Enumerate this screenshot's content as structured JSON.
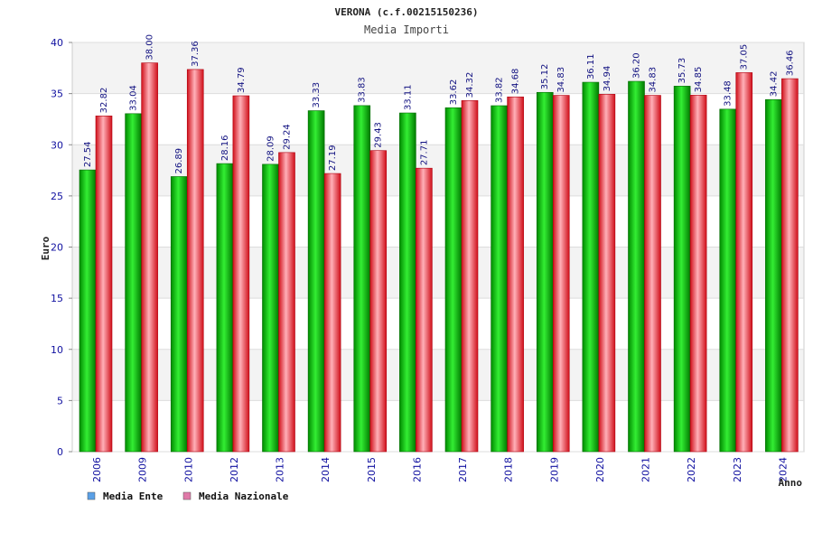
{
  "chart_data": {
    "type": "bar",
    "title": "VERONA (c.f.00215150236)",
    "subtitle": "Media Importi",
    "xlabel": "Anno",
    "ylabel": "Euro",
    "ylim": [
      0,
      40
    ],
    "yticks": [
      0,
      5,
      10,
      15,
      20,
      25,
      30,
      35,
      40
    ],
    "grid": true,
    "legend_position": "bottom-left",
    "categories": [
      "2006",
      "2009",
      "2010",
      "2012",
      "2013",
      "2014",
      "2015",
      "2016",
      "2017",
      "2018",
      "2019",
      "2020",
      "2021",
      "2022",
      "2023",
      "2024"
    ],
    "series": [
      {
        "name": "Media Ente",
        "color": "#00c000",
        "legend_color": "#5aa0e6",
        "values": [
          27.54,
          33.04,
          26.89,
          28.16,
          28.09,
          33.33,
          33.83,
          33.11,
          33.62,
          33.82,
          35.12,
          36.11,
          36.2,
          35.73,
          33.48,
          34.42
        ],
        "labels": [
          "27.54",
          "33.04",
          "26.89",
          "28.16",
          "28.09",
          "33.33",
          "33.83",
          "33.11",
          "33.62",
          "33.82",
          "35.12",
          "36.11",
          "36.20",
          "35.73",
          "33.48",
          "34.42"
        ]
      },
      {
        "name": "Media Nazionale",
        "color": "#e8202a",
        "legend_color": "#e07aa8",
        "values": [
          32.82,
          38.0,
          37.36,
          34.79,
          29.24,
          27.19,
          29.43,
          27.71,
          34.32,
          34.68,
          34.83,
          34.94,
          34.83,
          34.85,
          37.05,
          36.46
        ],
        "labels": [
          "32.82",
          "38.00",
          "37.36",
          "34.79",
          "29.24",
          "27.19",
          "29.43",
          "27.71",
          "34.32",
          "34.68",
          "34.83",
          "34.94",
          "34.83",
          "34.85",
          "37.05",
          "36.46"
        ]
      }
    ]
  }
}
